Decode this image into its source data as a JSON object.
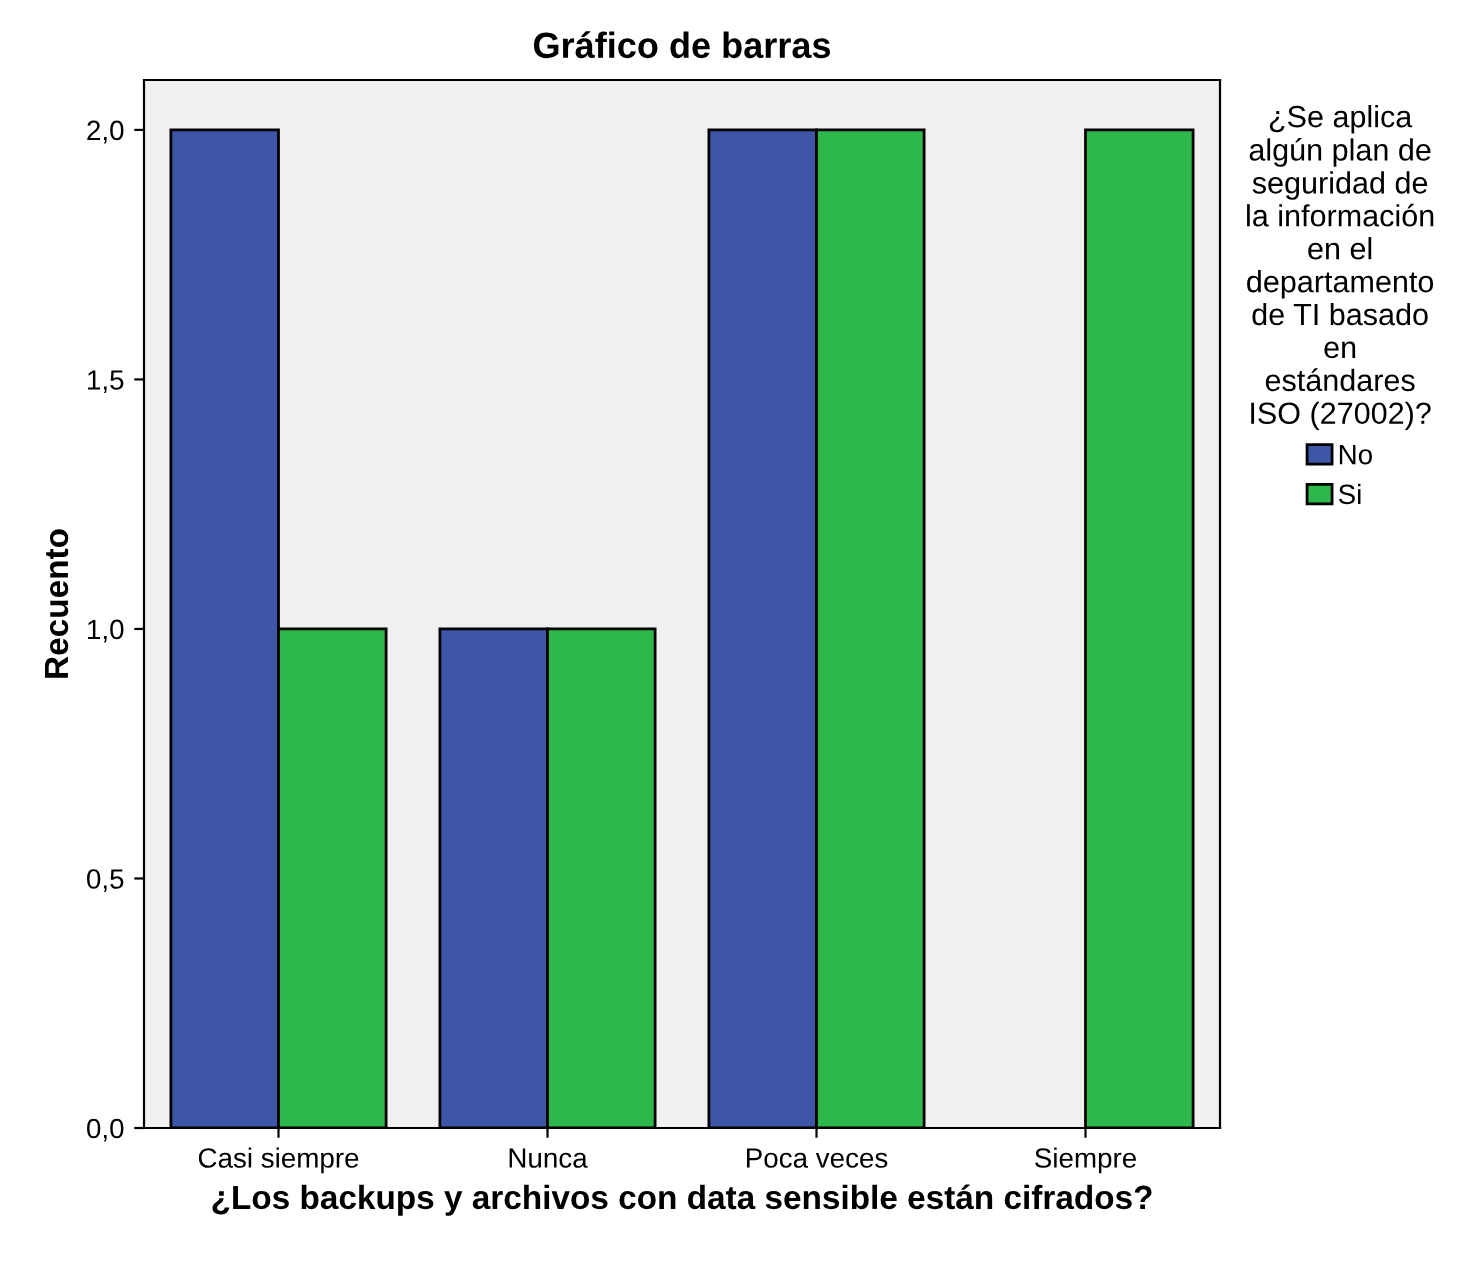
{
  "chart_data": {
    "type": "bar",
    "title": "Gráfico de barras",
    "xlabel": "¿Los backups y archivos con data sensible están cifrados?",
    "ylabel": "Recuento",
    "legend_title": "¿Se aplica\nalgún plan de\nseguridad de\nla información\nen el\ndepartamento\nde TI basado\nen\nestándares\nISO (27002)?",
    "categories": [
      "Casi siempre",
      "Nunca",
      "Poca veces",
      "Siempre"
    ],
    "series": [
      {
        "name": "No",
        "color": "#3d56a8",
        "values": [
          2,
          1,
          2,
          null
        ]
      },
      {
        "name": "Si",
        "color": "#2eb84b",
        "values": [
          1,
          1,
          2,
          2
        ]
      }
    ],
    "ylim": [
      0,
      2.1
    ],
    "yticks": [
      {
        "value": 0,
        "label": "0,0"
      },
      {
        "value": 0.5,
        "label": "0,5"
      },
      {
        "value": 1,
        "label": "1,0"
      },
      {
        "value": 1.5,
        "label": "1,5"
      },
      {
        "value": 2,
        "label": "2,0"
      }
    ],
    "grid": false,
    "legend": "right"
  }
}
